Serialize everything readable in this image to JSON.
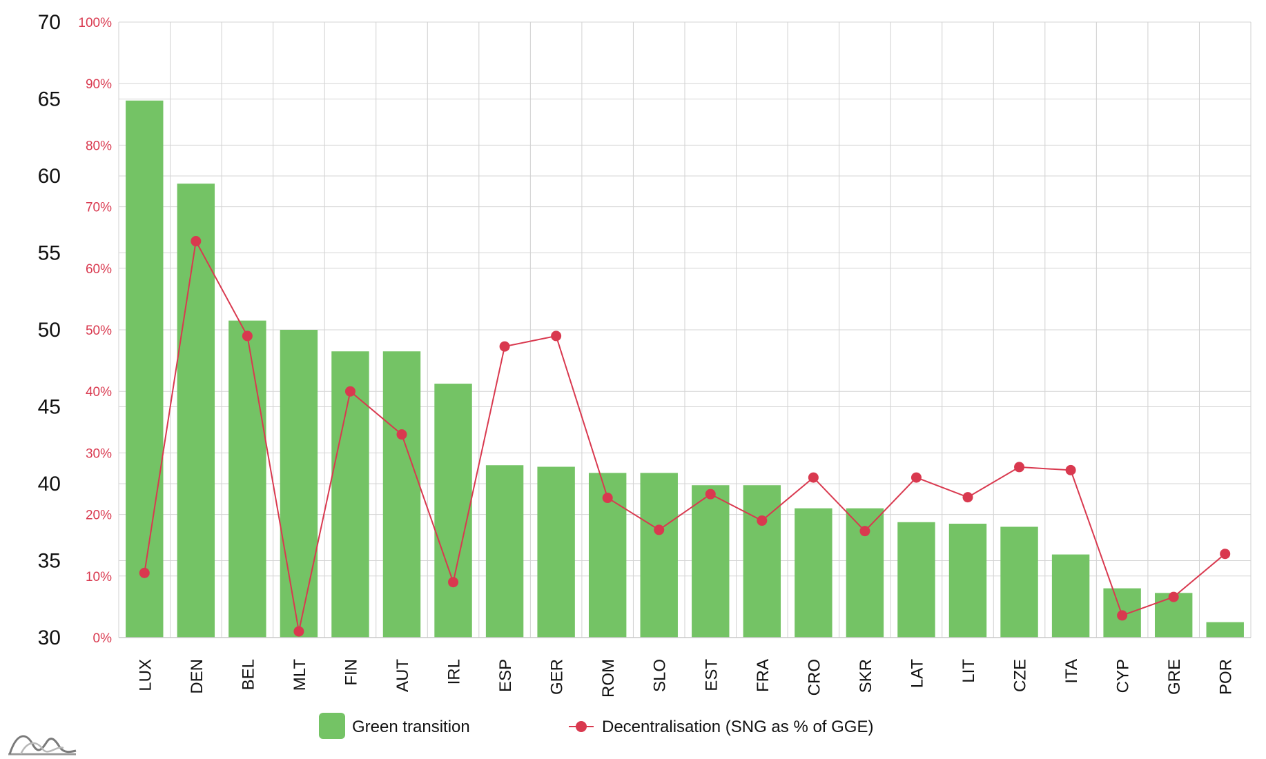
{
  "chart_data": {
    "type": "bar",
    "title": "",
    "xlabel": "",
    "ylabel": "",
    "categories": [
      "LUX",
      "DEN",
      "BEL",
      "MLT",
      "FIN",
      "AUT",
      "IRL",
      "ESP",
      "GER",
      "ROM",
      "SLO",
      "EST",
      "FRA",
      "CRO",
      "SKR",
      "LAT",
      "LIT",
      "CZE",
      "ITA",
      "CYP",
      "GRE",
      "POR"
    ],
    "ylim": [
      30,
      70
    ],
    "y_ticks": [
      "30",
      "35",
      "40",
      "45",
      "50",
      "55",
      "60",
      "65",
      "70"
    ],
    "y2lim": [
      0,
      100
    ],
    "y2_ticks": [
      "0%",
      "10%",
      "20%",
      "30%",
      "40%",
      "50%",
      "60%",
      "70%",
      "80%",
      "90%",
      "100%"
    ],
    "grid": true,
    "legend_position": "bottom",
    "series": [
      {
        "name": "Green transition",
        "type": "bar",
        "axis": "left",
        "color": "#74c365",
        "values": [
          64.9,
          59.5,
          50.6,
          50.0,
          48.6,
          48.6,
          46.5,
          41.2,
          41.1,
          40.7,
          40.7,
          39.9,
          39.9,
          38.4,
          38.4,
          37.5,
          37.4,
          37.2,
          35.4,
          33.2,
          32.9,
          31.0
        ]
      },
      {
        "name": "Decentralisation (SNG as % of GGE)",
        "type": "line",
        "axis": "right",
        "color": "#d9394f",
        "values": [
          10.5,
          64.4,
          49.0,
          1.0,
          40.0,
          33.0,
          9.0,
          47.3,
          49.0,
          22.7,
          17.5,
          23.3,
          19.0,
          26.0,
          17.3,
          26.0,
          22.8,
          27.7,
          27.2,
          3.6,
          6.6,
          13.6
        ]
      }
    ]
  }
}
